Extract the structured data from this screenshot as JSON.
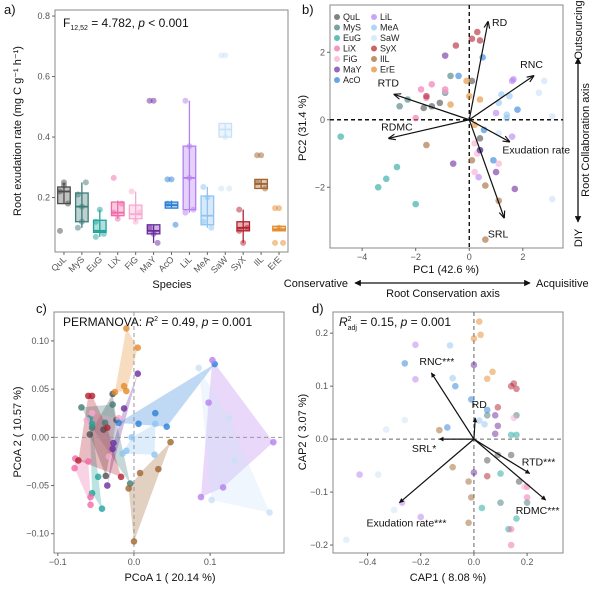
{
  "species": [
    "QuL",
    "MyS",
    "EuG",
    "LiX",
    "FiG",
    "MaY",
    "AcO",
    "LiL",
    "MeA",
    "SaW",
    "SyX",
    "IlL",
    "ErE"
  ],
  "colors": [
    "#4d4d4d",
    "#3e7c78",
    "#1fa39a",
    "#f06aa8",
    "#f7a9cf",
    "#6b2a9e",
    "#2a7fd8",
    "#b57ff0",
    "#8fc4f2",
    "#c9e1f8",
    "#b3202e",
    "#a0642e",
    "#e38b2b"
  ],
  "chart_data": [
    {
      "panel": "a)",
      "type": "box",
      "stat": {
        "f": "F",
        "sub": "12,52",
        "mid": " = 4.782, ",
        "p": "p",
        "tail": " < 0.001"
      },
      "xlabel": "Species",
      "ylabel": "Root exudation rate (mg C g⁻¹ h⁻¹)",
      "ylim": [
        0.02,
        0.82
      ],
      "yticks": [
        "0.2",
        "0.4",
        "0.6",
        "0.8"
      ],
      "boxes": [
        {
          "lo": 0.18,
          "q1": 0.18,
          "med": 0.22,
          "q3": 0.235,
          "hi": 0.25,
          "pts": [
            0.09,
            0.25,
            0.18,
            0.22,
            0.24
          ]
        },
        {
          "lo": 0.1,
          "q1": 0.12,
          "med": 0.17,
          "q3": 0.215,
          "hi": 0.25,
          "pts": [
            0.1,
            0.12,
            0.25,
            0.21,
            0.17
          ]
        },
        {
          "lo": 0.07,
          "q1": 0.085,
          "med": 0.09,
          "q3": 0.125,
          "hi": 0.16,
          "pts": [
            0.07,
            0.16,
            0.08,
            0.12
          ]
        },
        {
          "lo": 0.13,
          "q1": 0.14,
          "med": 0.15,
          "q3": 0.185,
          "hi": 0.19,
          "pts": [
            0.265,
            0.13,
            0.18,
            0.15
          ]
        },
        {
          "lo": 0.12,
          "q1": 0.13,
          "med": 0.145,
          "q3": 0.175,
          "hi": 0.22,
          "pts": [
            0.22,
            0.12,
            0.15
          ]
        },
        {
          "lo": 0.05,
          "q1": 0.08,
          "med": 0.09,
          "q3": 0.11,
          "hi": 0.11,
          "pts": [
            0.52,
            0.52,
            0.05,
            0.1,
            0.08
          ]
        },
        {
          "lo": 0.165,
          "q1": 0.165,
          "med": 0.175,
          "q3": 0.185,
          "hi": 0.19,
          "pts": [
            0.26,
            0.26,
            0.11,
            0.18
          ]
        },
        {
          "lo": 0.15,
          "q1": 0.16,
          "med": 0.265,
          "q3": 0.37,
          "hi": 0.52,
          "pts": [
            0.52,
            0.37,
            0.16,
            0.15,
            0.265
          ]
        },
        {
          "lo": 0.1,
          "q1": 0.11,
          "med": 0.14,
          "q3": 0.205,
          "hi": 0.235,
          "pts": [
            0.235,
            0.2,
            0.1,
            0.12
          ]
        },
        {
          "lo": 0.4,
          "q1": 0.4,
          "med": 0.425,
          "q3": 0.445,
          "hi": 0.445,
          "pts": [
            0.67,
            0.67,
            0.23,
            0.23,
            0.4
          ]
        },
        {
          "lo": 0.05,
          "q1": 0.09,
          "med": 0.1,
          "q3": 0.12,
          "hi": 0.16,
          "pts": [
            0.16,
            0.05,
            0.1,
            0.09
          ]
        },
        {
          "lo": 0.23,
          "q1": 0.23,
          "med": 0.245,
          "q3": 0.26,
          "hi": 0.26,
          "pts": [
            0.34,
            0.34,
            0.23,
            0.25
          ]
        },
        {
          "lo": 0.09,
          "q1": 0.09,
          "med": 0.095,
          "q3": 0.105,
          "hi": 0.105,
          "pts": [
            0.165,
            0.165,
            0.05,
            0.05,
            0.1
          ]
        }
      ]
    },
    {
      "panel": "b)",
      "type": "scatter-biplot",
      "xlabel": "PC1 (42.6 %)",
      "ylabel": "PC2 (31.4 %)",
      "xlim": [
        -5.2,
        3.5
      ],
      "ylim": [
        -3.8,
        3.4
      ],
      "xticks": [
        "-4",
        "-2",
        "0",
        "2"
      ],
      "yticks": [
        "-2",
        "0",
        "2"
      ],
      "arrows": [
        {
          "label": "RD",
          "x": 0.7,
          "y": 2.9
        },
        {
          "label": "RNC",
          "x": 2.4,
          "y": 1.3
        },
        {
          "label": "RTD",
          "x": -2.8,
          "y": 0.75
        },
        {
          "label": "RDMC",
          "x": -3.0,
          "y": -0.55
        },
        {
          "label": "Exudation rate",
          "x": 1.5,
          "y": -0.65
        },
        {
          "label": "SRL",
          "x": 1.3,
          "y": -2.9
        }
      ],
      "points": [
        [
          [
            -1.7,
            0.35
          ],
          [
            -1.1,
            0.5
          ],
          [
            0.1,
            1.15
          ],
          [
            0.4,
            -0.55
          ],
          [
            -1.4,
            0.4
          ]
        ],
        [
          [
            -2.6,
            0.4
          ],
          [
            -0.9,
            0.8
          ],
          [
            -0.7,
            1.3
          ],
          [
            -2.3,
            0.6
          ],
          [
            0.4,
            -0.9
          ]
        ],
        [
          [
            -4.8,
            -0.5
          ],
          [
            -3.4,
            -2.0
          ],
          [
            -3.1,
            -1.75
          ],
          [
            -2.7,
            -1.4
          ],
          [
            -2.0,
            -2.5
          ]
        ],
        [
          [
            -1.8,
            0.9
          ],
          [
            -1.4,
            1.05
          ],
          [
            -0.9,
            0.9
          ],
          [
            -2.0,
            0.05
          ],
          [
            -1.6,
            0.65
          ]
        ],
        [
          [
            0.2,
            -0.7
          ],
          [
            0.2,
            -1.55
          ],
          [
            1.1,
            -1.3
          ],
          [
            -0.9,
            0.85
          ],
          [
            0.3,
            -1.0
          ]
        ],
        [
          [
            -0.9,
            1.9
          ],
          [
            -0.6,
            -1.3
          ],
          [
            0.4,
            -0.9
          ],
          [
            1.0,
            -1.55
          ],
          [
            1.7,
            -2.05
          ]
        ],
        [
          [
            0.5,
            1.85
          ],
          [
            -0.4,
            1.3
          ],
          [
            1.8,
            0.3
          ],
          [
            0.55,
            -0.3
          ],
          [
            0.9,
            -1.2
          ]
        ],
        [
          [
            1.6,
            1.15
          ],
          [
            1.65,
            1.2
          ],
          [
            1.0,
            0.2
          ],
          [
            1.6,
            -0.5
          ],
          [
            0.35,
            -1.7
          ]
        ],
        [
          [
            1.2,
            0.75
          ],
          [
            1.5,
            0.7
          ],
          [
            1.1,
            0.5
          ],
          [
            1.4,
            0.15
          ],
          [
            1.4,
            0.05
          ]
        ],
        [
          [
            2.6,
            0.8
          ],
          [
            2.8,
            1.15
          ],
          [
            3.1,
            0.1
          ],
          [
            3.1,
            -2.35
          ],
          [
            1.1,
            -0.4
          ]
        ],
        [
          [
            -0.5,
            2.2
          ],
          [
            0.3,
            2.6
          ],
          [
            0.1,
            2.4
          ],
          [
            0.4,
            2.35
          ],
          [
            -1.6,
            0.7
          ]
        ],
        [
          [
            -1.6,
            -0.75
          ],
          [
            0.1,
            -1.2
          ],
          [
            0.6,
            -1.95
          ],
          [
            1.1,
            -2.4
          ],
          [
            0.6,
            -3.55
          ]
        ],
        [
          [
            -0.7,
            0.45
          ],
          [
            -0.1,
            1.15
          ],
          [
            0.0,
            0.7
          ],
          [
            0.4,
            0.6
          ],
          [
            0.2,
            -0.15
          ]
        ]
      ],
      "side_axis": {
        "top": "Outsourcing",
        "middle": "Root Collaboration axis",
        "bottom": "DIY"
      },
      "bottom_axis": {
        "left": "Conservative",
        "middle": "Root Conservation axis",
        "right": "Acquisitive"
      }
    },
    {
      "panel": "c)",
      "type": "scatter-hull",
      "stat": {
        "pre": "PERMANOVA: ",
        "r": "R",
        "sup": "2",
        "mid": " = 0.49, ",
        "p": "p",
        "tail": " = 0.001"
      },
      "xlabel": "PCoA 1 ( 20.14 %)",
      "ylabel": "PCoA 2 ( 10.57 %)",
      "xlim": [
        -0.105,
        0.197
      ],
      "ylim": [
        -0.12,
        0.13
      ],
      "xticks": [
        "-0.1",
        "0.0",
        "0.1"
      ],
      "yticks": [
        "-0.10",
        "-0.05",
        "0.00",
        "0.05",
        "0.10"
      ],
      "points": [
        [
          [
            -0.028,
            0.045
          ],
          [
            -0.058,
            0.003
          ],
          [
            -0.04,
            0.008
          ],
          [
            -0.037,
            -0.04
          ],
          [
            -0.023,
            0.018
          ]
        ],
        [
          [
            -0.069,
            0.031
          ],
          [
            -0.055,
            0.01
          ],
          [
            -0.028,
            0.034
          ],
          [
            -0.005,
            -0.048
          ],
          [
            -0.038,
            0.015
          ]
        ],
        [
          [
            -0.055,
            0.014
          ],
          [
            -0.047,
            -0.041
          ],
          [
            -0.042,
            -0.074
          ],
          [
            -0.055,
            -0.058
          ],
          [
            -0.058,
            0.02
          ]
        ],
        [
          [
            -0.077,
            -0.022
          ],
          [
            -0.078,
            -0.032
          ],
          [
            -0.057,
            -0.062
          ],
          [
            -0.057,
            -0.07
          ],
          [
            -0.06,
            -0.025
          ]
        ],
        [
          [
            -0.055,
            0.025
          ],
          [
            -0.02,
            0.02
          ],
          [
            -0.033,
            -0.02
          ],
          [
            -0.062,
            0.018
          ]
        ],
        [
          [
            0.005,
            0.066
          ],
          [
            -0.013,
            0.03
          ],
          [
            -0.027,
            -0.006
          ],
          [
            -0.035,
            -0.05
          ],
          [
            -0.028,
            -0.012
          ]
        ],
        [
          [
            0.106,
            0.076
          ],
          [
            0.028,
            0.025
          ],
          [
            0.043,
            0.011
          ],
          [
            0.006,
            0.014
          ],
          [
            -0.02,
            0.015
          ]
        ],
        [
          [
            0.103,
            0.08
          ],
          [
            0.098,
            0.036
          ],
          [
            0.183,
            -0.005
          ],
          [
            0.117,
            -0.052
          ],
          [
            0.088,
            -0.062
          ]
        ],
        [
          [
            0.028,
            0.014
          ],
          [
            0.027,
            -0.018
          ],
          [
            -0.01,
            -0.014
          ],
          [
            -0.003,
            0.0
          ],
          [
            -0.015,
            -0.017
          ]
        ],
        [
          [
            0.085,
            0.072
          ],
          [
            0.125,
            0.02
          ],
          [
            0.132,
            -0.024
          ],
          [
            0.178,
            -0.078
          ],
          [
            0.102,
            -0.065
          ]
        ],
        [
          [
            -0.06,
            0.043
          ],
          [
            -0.055,
            0.043
          ],
          [
            -0.035,
            0.01
          ],
          [
            -0.017,
            -0.041
          ],
          [
            -0.073,
            -0.024
          ]
        ],
        [
          [
            0.048,
            -0.005
          ],
          [
            0.032,
            -0.033
          ],
          [
            0.008,
            -0.037
          ],
          [
            0.0,
            -0.108
          ],
          [
            -0.007,
            -0.053
          ]
        ],
        [
          [
            -0.01,
            0.113
          ],
          [
            0.005,
            0.093
          ],
          [
            -0.013,
            0.053
          ],
          [
            -0.01,
            0.048
          ],
          [
            -0.025,
            0.047
          ]
        ]
      ]
    },
    {
      "panel": "d)",
      "type": "scatter-biplot",
      "stat": {
        "r": "R",
        "sup": "2",
        "sub": "adj",
        "mid": " = 0.15, ",
        "p": "p",
        "tail": " = 0.001"
      },
      "xlabel": "CAP1 ( 8.08 %)",
      "ylabel": "CAP2 ( 3.07 %)",
      "xlim": [
        -0.53,
        0.335
      ],
      "ylim": [
        -0.215,
        0.24
      ],
      "xticks": [
        "-0.4",
        "-0.2",
        "0.0",
        "0.2"
      ],
      "yticks": [
        "-0.2",
        "-0.1",
        "0.0",
        "0.1",
        "0.2"
      ],
      "arrows": [
        {
          "label": "RNC***",
          "x": -0.16,
          "y": 0.125
        },
        {
          "label": "RD",
          "x": 0.005,
          "y": 0.04
        },
        {
          "label": "SRL*",
          "x": -0.13,
          "y": 0.0
        },
        {
          "label": "Exudation rate***",
          "x": -0.28,
          "y": -0.12
        },
        {
          "label": "RTD***",
          "x": 0.21,
          "y": -0.065
        },
        {
          "label": "RDMC***",
          "x": 0.27,
          "y": -0.115
        }
      ],
      "points": [
        [
          [
            0.05,
            -0.04
          ],
          [
            0.14,
            -0.03
          ],
          [
            0.17,
            -0.08
          ],
          [
            0.09,
            -0.03
          ]
        ],
        [
          [
            0.16,
            0.045
          ],
          [
            0.05,
            0.045
          ],
          [
            0.1,
            -0.12
          ],
          [
            0.2,
            -0.12
          ]
        ],
        [
          [
            0.1,
            -0.065
          ],
          [
            0.14,
            0.008
          ],
          [
            0.16,
            -0.15
          ],
          [
            0.03,
            -0.13
          ],
          [
            0.13,
            -0.17
          ],
          [
            0.16,
            0.008
          ]
        ],
        [
          [
            0.2,
            -0.11
          ],
          [
            0.14,
            -0.2
          ],
          [
            0.14,
            -0.17
          ],
          [
            0.2,
            -0.09
          ]
        ],
        [
          [
            0.15,
            0.04
          ],
          [
            0.19,
            -0.09
          ]
        ],
        [
          [
            0.0,
            0.14
          ],
          [
            0.08,
            0.045
          ],
          [
            0.09,
            0.025
          ],
          [
            0.08,
            0.01
          ],
          [
            0.0,
            -0.063
          ]
        ],
        [
          [
            -0.26,
            0.143
          ],
          [
            -0.07,
            0.1
          ],
          [
            -0.1,
            0.022
          ],
          [
            -0.01,
            0.075
          ],
          [
            0.05,
            0.055
          ]
        ],
        [
          [
            -0.22,
            0.178
          ],
          [
            -0.22,
            0.113
          ],
          [
            -0.43,
            -0.067
          ],
          [
            -0.27,
            -0.12
          ],
          [
            -0.2,
            -0.147
          ]
        ],
        [
          [
            -0.09,
            0.177
          ],
          [
            -0.08,
            0.115
          ],
          [
            0.02,
            0.035
          ],
          [
            0.04,
            0.028
          ]
        ],
        [
          [
            -0.26,
            0.036
          ],
          [
            -0.33,
            0.018
          ],
          [
            -0.36,
            -0.067
          ],
          [
            -0.3,
            -0.134
          ],
          [
            -0.48,
            -0.19
          ]
        ],
        [
          [
            0.15,
            0.105
          ],
          [
            0.14,
            0.1
          ],
          [
            0.16,
            0.095
          ],
          [
            0.09,
            0.06
          ],
          [
            0.05,
            -0.07
          ]
        ],
        [
          [
            -0.13,
            0.017
          ],
          [
            -0.08,
            -0.053
          ],
          [
            -0.02,
            -0.08
          ],
          [
            -0.01,
            -0.11
          ],
          [
            -0.02,
            -0.158
          ]
        ],
        [
          [
            0.02,
            0.222
          ],
          [
            0.025,
            0.197
          ],
          [
            0.0,
            0.19
          ],
          [
            0.07,
            0.127
          ],
          [
            0.05,
            0.114
          ]
        ]
      ]
    }
  ]
}
